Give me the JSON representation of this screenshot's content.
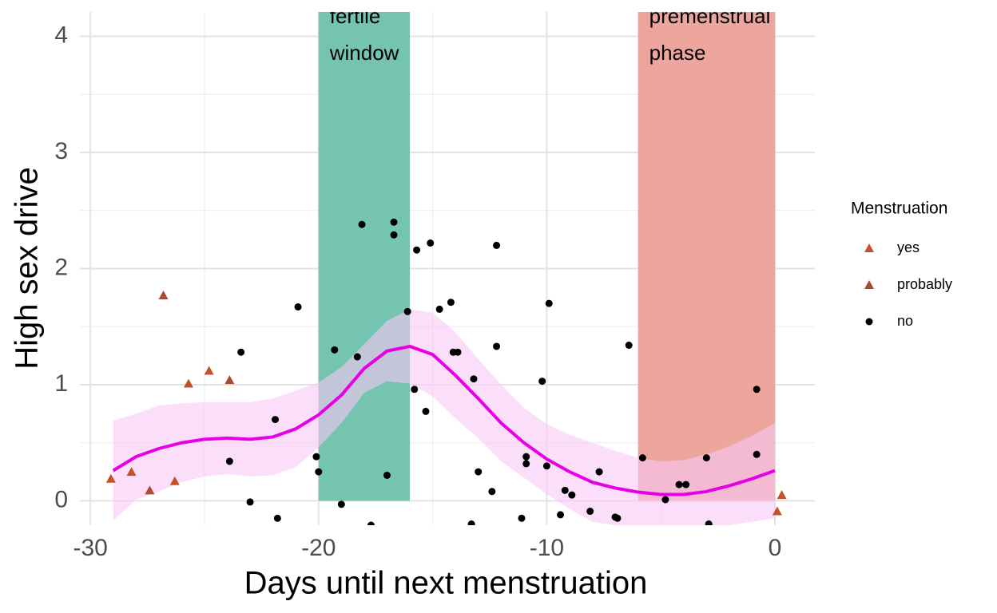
{
  "chart_data": {
    "type": "scatter",
    "xlabel": "Days until next menstruation",
    "ylabel": "High sex drive",
    "xlim": [
      -30.46,
      1.75
    ],
    "ylim": [
      -0.21,
      4.21
    ],
    "xticks": [
      -30,
      -20,
      -10,
      0
    ],
    "yticks": [
      0,
      1,
      2,
      3,
      4
    ],
    "minor_xticks": [
      -25,
      -15,
      -5
    ],
    "minor_yticks": [
      0.5,
      1.5,
      2.5,
      3.5
    ],
    "grid": true,
    "legend": {
      "title": "Menstruation",
      "position": "right"
    },
    "regions": [
      {
        "label": [
          "fertile",
          "window"
        ],
        "xmin": -20,
        "xmax": -16,
        "ymin": 0,
        "color": "#74c4af"
      },
      {
        "label": [
          "premenstrual",
          "phase"
        ],
        "xmin": -6,
        "xmax": 0,
        "ymin": 0,
        "color": "#eda69e"
      }
    ],
    "fit": {
      "color": "#e600e6",
      "band_color": "#f9c8f5",
      "x": [
        -29,
        -28,
        -27,
        -26,
        -25,
        -24,
        -23,
        -22,
        -21,
        -20,
        -19,
        -18,
        -17,
        -16,
        -15,
        -14,
        -13,
        -12,
        -11,
        -10,
        -9,
        -8,
        -7,
        -6,
        -5,
        -4,
        -3,
        -2,
        -1,
        0
      ],
      "y": [
        0.26,
        0.38,
        0.45,
        0.5,
        0.53,
        0.54,
        0.53,
        0.55,
        0.62,
        0.74,
        0.91,
        1.14,
        1.29,
        1.33,
        1.26,
        1.08,
        0.88,
        0.67,
        0.5,
        0.36,
        0.25,
        0.16,
        0.11,
        0.075,
        0.055,
        0.055,
        0.08,
        0.13,
        0.19,
        0.26
      ],
      "upper": [
        0.69,
        0.75,
        0.82,
        0.84,
        0.85,
        0.85,
        0.85,
        0.88,
        0.95,
        1.02,
        1.15,
        1.35,
        1.55,
        1.65,
        1.62,
        1.45,
        1.22,
        1.0,
        0.8,
        0.66,
        0.57,
        0.5,
        0.43,
        0.37,
        0.34,
        0.35,
        0.4,
        0.47,
        0.56,
        0.67
      ],
      "lower": [
        -0.17,
        0.01,
        0.08,
        0.16,
        0.21,
        0.23,
        0.21,
        0.22,
        0.29,
        0.46,
        0.67,
        0.93,
        1.03,
        1.01,
        0.9,
        0.71,
        0.54,
        0.34,
        0.2,
        0.06,
        -0.07,
        -0.18,
        -0.21,
        -0.22,
        -0.23,
        -0.24,
        -0.24,
        -0.21,
        -0.18,
        -0.15
      ]
    },
    "series": [
      {
        "name": "yes",
        "color": "#c4512c",
        "marker": "triangle",
        "x": [
          -29.1,
          -28.2,
          -26.3,
          -25.7,
          -24.8,
          0.1,
          0.3
        ],
        "y": [
          0.19,
          0.25,
          0.17,
          1.01,
          1.12,
          -0.09,
          0.05
        ]
      },
      {
        "name": "probably",
        "color": "#a94b32",
        "marker": "triangle",
        "x": [
          -27.4,
          -26.8,
          -23.9
        ],
        "y": [
          0.09,
          1.77,
          1.04
        ]
      },
      {
        "name": "no",
        "color": "#000000",
        "marker": "circle",
        "x": [
          -23.4,
          -23.9,
          -23.0,
          -21.9,
          -21.8,
          -20.9,
          -20.1,
          -20.0,
          -19.3,
          -19.0,
          -18.3,
          -18.1,
          -17.7,
          -17.0,
          -16.7,
          -16.7,
          -16.1,
          -15.8,
          -15.7,
          -15.3,
          -15.1,
          -14.7,
          -14.2,
          -14.1,
          -13.9,
          -13.2,
          -13.3,
          -13.0,
          -12.4,
          -12.2,
          -12.2,
          -11.1,
          -10.9,
          -10.9,
          -10.2,
          -10.0,
          -9.9,
          -9.4,
          -9.2,
          -8.9,
          -8.1,
          -7.7,
          -7.0,
          -6.9,
          -6.4,
          -5.8,
          -4.8,
          -4.2,
          -3.9,
          -3.0,
          -2.9,
          -0.8,
          -0.8
        ],
        "y": [
          1.28,
          0.34,
          -0.01,
          0.7,
          -0.15,
          1.67,
          0.38,
          0.25,
          1.3,
          -0.03,
          1.24,
          2.38,
          -0.21,
          0.22,
          2.29,
          2.4,
          1.63,
          0.96,
          2.16,
          0.77,
          2.22,
          1.65,
          1.71,
          1.28,
          1.28,
          1.05,
          -0.2,
          0.25,
          0.08,
          2.2,
          1.33,
          -0.15,
          0.38,
          0.32,
          1.03,
          0.3,
          1.7,
          -0.12,
          0.09,
          0.05,
          -0.09,
          0.25,
          -0.14,
          -0.15,
          1.34,
          0.37,
          0.01,
          0.14,
          0.14,
          0.37,
          -0.2,
          0.4,
          0.96
        ]
      }
    ]
  }
}
